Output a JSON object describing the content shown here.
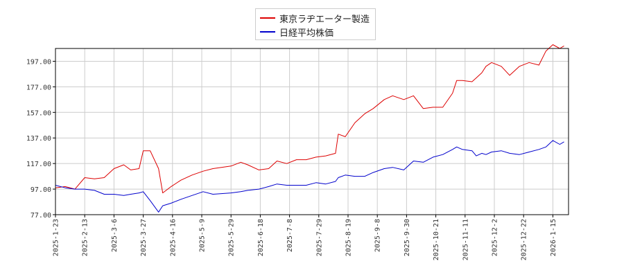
{
  "chart_data": {
    "type": "line",
    "title": "",
    "xlabel": "",
    "ylabel": "",
    "ylim": [
      77,
      207
    ],
    "yticks": [
      "77.00",
      "97.00",
      "117.00",
      "137.00",
      "157.00",
      "177.00",
      "197.00"
    ],
    "xticks": [
      "2025-1-23",
      "2025-2-13",
      "2025-3-6",
      "2025-3-27",
      "2025-4-16",
      "2025-5-9",
      "2025-5-29",
      "2025-6-18",
      "2025-7-8",
      "2025-7-29",
      "2025-8-19",
      "2025-9-8",
      "2025-9-30",
      "2025-10-21",
      "2025-11-11",
      "2025-12-2",
      "2025-12-22",
      "2026-1-15"
    ],
    "grid": true,
    "legend_position": "top-center",
    "series": [
      {
        "name": "東京ラヂエーター製造",
        "color": "#dd0000",
        "x": [
          "2025-1-23",
          "2025-1-30",
          "2025-2-6",
          "2025-2-13",
          "2025-2-20",
          "2025-2-27",
          "2025-3-6",
          "2025-3-13",
          "2025-3-18",
          "2025-3-24",
          "2025-3-27",
          "2025-4-1",
          "2025-4-7",
          "2025-4-10",
          "2025-4-16",
          "2025-4-23",
          "2025-5-1",
          "2025-5-9",
          "2025-5-16",
          "2025-5-29",
          "2025-6-5",
          "2025-6-10",
          "2025-6-18",
          "2025-6-25",
          "2025-7-1",
          "2025-7-8",
          "2025-7-15",
          "2025-7-22",
          "2025-7-29",
          "2025-8-5",
          "2025-8-12",
          "2025-8-14",
          "2025-8-19",
          "2025-8-26",
          "2025-9-2",
          "2025-9-8",
          "2025-9-16",
          "2025-9-22",
          "2025-9-30",
          "2025-10-7",
          "2025-10-14",
          "2025-10-21",
          "2025-10-28",
          "2025-11-4",
          "2025-11-7",
          "2025-11-11",
          "2025-11-18",
          "2025-11-21",
          "2025-11-25",
          "2025-11-28",
          "2025-12-2",
          "2025-12-9",
          "2025-12-15",
          "2025-12-22",
          "2025-12-29",
          "2026-1-5",
          "2026-1-10",
          "2026-1-15",
          "2026-1-20",
          "2026-1-23"
        ],
        "values": [
          98,
          99,
          97,
          106,
          105,
          106,
          113,
          116,
          112,
          113,
          127,
          127,
          113,
          94,
          99,
          104,
          108,
          111,
          113,
          115,
          118,
          116,
          112,
          113,
          119,
          117,
          120,
          120,
          122,
          123,
          125,
          140,
          138,
          149,
          156,
          160,
          167,
          170,
          167,
          170,
          160,
          161,
          161,
          172,
          182,
          182,
          181,
          184,
          188,
          193,
          196,
          193,
          186,
          193,
          196,
          194,
          205,
          210,
          207,
          209
        ]
      },
      {
        "name": "日経平均株価",
        "color": "#0000cc",
        "x": [
          "2025-1-23",
          "2025-1-30",
          "2025-2-6",
          "2025-2-13",
          "2025-2-20",
          "2025-2-27",
          "2025-3-6",
          "2025-3-13",
          "2025-3-18",
          "2025-3-24",
          "2025-3-27",
          "2025-4-1",
          "2025-4-7",
          "2025-4-10",
          "2025-4-16",
          "2025-4-23",
          "2025-5-1",
          "2025-5-9",
          "2025-5-16",
          "2025-5-29",
          "2025-6-5",
          "2025-6-10",
          "2025-6-18",
          "2025-6-25",
          "2025-7-1",
          "2025-7-8",
          "2025-7-15",
          "2025-7-22",
          "2025-7-29",
          "2025-8-5",
          "2025-8-12",
          "2025-8-14",
          "2025-8-19",
          "2025-8-26",
          "2025-9-2",
          "2025-9-8",
          "2025-9-16",
          "2025-9-22",
          "2025-9-30",
          "2025-10-7",
          "2025-10-14",
          "2025-10-21",
          "2025-10-28",
          "2025-11-4",
          "2025-11-7",
          "2025-11-11",
          "2025-11-18",
          "2025-11-21",
          "2025-11-25",
          "2025-11-28",
          "2025-12-2",
          "2025-12-9",
          "2025-12-15",
          "2025-12-22",
          "2025-12-29",
          "2026-1-5",
          "2026-1-10",
          "2026-1-15",
          "2026-1-20",
          "2026-1-23"
        ],
        "values": [
          100,
          98,
          97,
          97,
          96,
          93,
          93,
          92,
          93,
          94,
          95,
          88,
          79,
          84,
          86,
          89,
          92,
          95,
          93,
          94,
          95,
          96,
          97,
          99,
          101,
          100,
          100,
          100,
          102,
          101,
          103,
          106,
          108,
          107,
          107,
          110,
          113,
          114,
          112,
          119,
          118,
          122,
          124,
          128,
          130,
          128,
          127,
          123,
          125,
          124,
          126,
          127,
          125,
          124,
          126,
          128,
          130,
          135,
          132,
          134
        ]
      }
    ]
  }
}
